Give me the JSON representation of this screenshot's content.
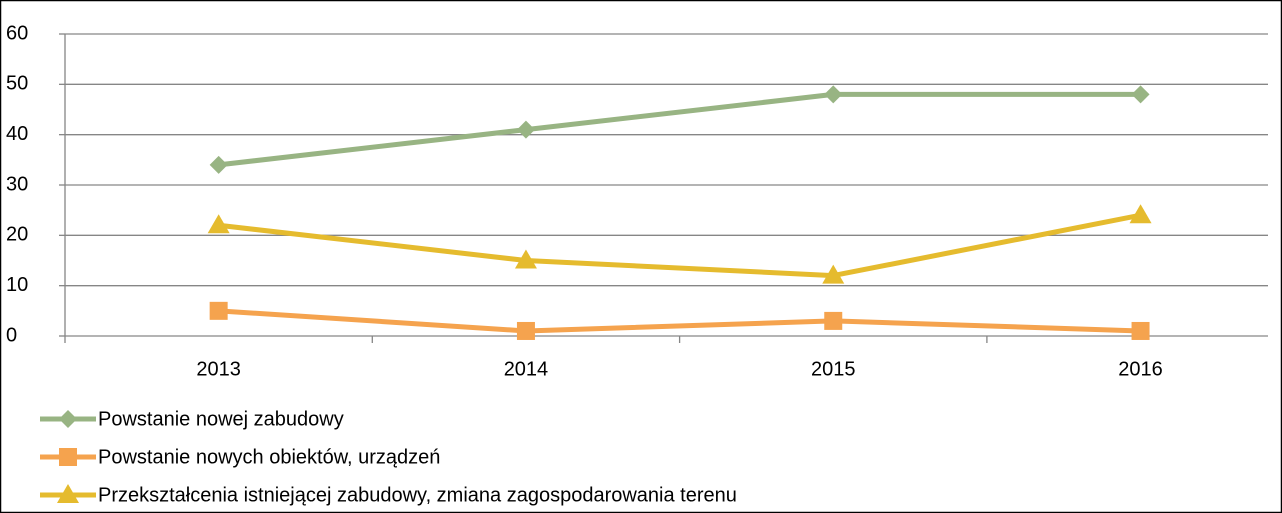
{
  "chart_data": {
    "type": "line",
    "categories": [
      "2013",
      "2014",
      "2015",
      "2016"
    ],
    "series": [
      {
        "name": "Powstanie nowej zabudowy",
        "color": "#98b483",
        "marker": "diamond",
        "values": [
          34,
          41,
          48,
          48
        ]
      },
      {
        "name": "Powstanie nowych obiektów, urządzeń",
        "color": "#f5a34e",
        "marker": "square",
        "values": [
          5,
          1,
          3,
          1
        ]
      },
      {
        "name": "Przekształcenia istniejącej zabudowy, zmiana zagospodarowania terenu",
        "color": "#e5bb2e",
        "marker": "triangle",
        "values": [
          22,
          15,
          12,
          24
        ]
      }
    ],
    "ylim": [
      0,
      60
    ],
    "yticks": [
      0,
      10,
      20,
      30,
      40,
      50,
      60
    ],
    "grid": true,
    "legend": "bottom"
  }
}
